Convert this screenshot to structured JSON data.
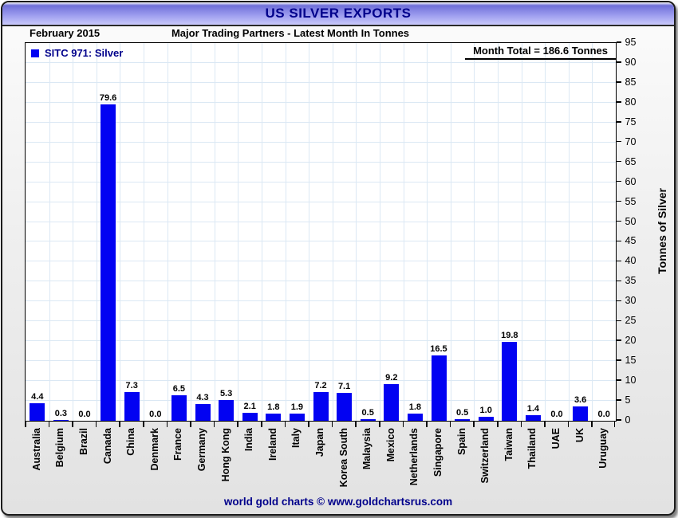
{
  "header": {
    "title": "US SILVER EXPORTS",
    "subtitle_left": "February 2015",
    "subtitle_center": "Major Trading Partners - Latest Month In Tonnes"
  },
  "legend": {
    "label": "SITC 971: Silver",
    "swatch_color": "#0202f2"
  },
  "annotations": {
    "month_total": "Month Total = 186.6 Tonnes"
  },
  "footer": {
    "credit": "world gold charts © www.goldchartsrus.com"
  },
  "colors": {
    "bar": "#0202f2",
    "navy_text": "#00008b",
    "gridline": "#dbe8f4",
    "titlebar_gradient_top": "#6f6fd8",
    "titlebar_gradient_bottom": "#c9c9fa"
  },
  "chart_data": {
    "type": "bar",
    "title": "US SILVER EXPORTS",
    "series_name": "SITC 971: Silver",
    "categories": [
      "Australia",
      "Belgium",
      "Brazil",
      "Canada",
      "China",
      "Denmark",
      "France",
      "Germany",
      "Hong Kong",
      "India",
      "Ireland",
      "Italy",
      "Japan",
      "Korea South",
      "Malaysia",
      "Mexico",
      "Netherlands",
      "Singapore",
      "Spain",
      "Switzerland",
      "Taiwan",
      "Thailand",
      "UAE",
      "UK",
      "Uruguay"
    ],
    "values": [
      4.4,
      0.3,
      0.0,
      79.6,
      7.3,
      0.0,
      6.5,
      4.3,
      5.3,
      2.1,
      1.8,
      1.9,
      7.2,
      7.1,
      0.5,
      9.2,
      1.8,
      16.5,
      0.5,
      1.0,
      19.8,
      1.4,
      0.0,
      3.6,
      0.0
    ],
    "xlabel": "",
    "ylabel": "Tonnes of Silver",
    "ylim": [
      0,
      95
    ],
    "ytick_step": 5,
    "grid": true,
    "legend_position": "top-left",
    "value_labels_decimals": 1
  }
}
